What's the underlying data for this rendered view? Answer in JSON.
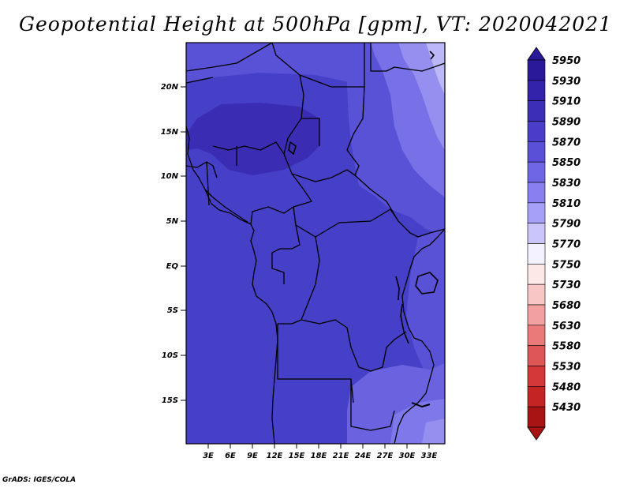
{
  "title": "Geopotential Height at 500hPa [gpm], VT: 2020042021",
  "footer": "GrADS: IGES/COLA",
  "map": {
    "lon_range": [
      0,
      35
    ],
    "lat_range": [
      -20,
      25
    ],
    "lat_ticks": [
      "20N",
      "15N",
      "10N",
      "5N",
      "EQ",
      "5S",
      "10S",
      "15S"
    ],
    "lon_ticks": [
      "3E",
      "6E",
      "9E",
      "12E",
      "15E",
      "18E",
      "21E",
      "24E",
      "27E",
      "30E",
      "33E"
    ]
  },
  "colorbar": {
    "labels": [
      "5950",
      "5930",
      "5910",
      "5890",
      "5870",
      "5850",
      "5830",
      "5810",
      "5790",
      "5770",
      "5750",
      "5730",
      "5680",
      "5630",
      "5580",
      "5530",
      "5480",
      "5430"
    ],
    "colors": [
      "#2a1a99",
      "#3322aa",
      "#3d2eb8",
      "#4a3ec8",
      "#5a50d8",
      "#6e66e4",
      "#8880f0",
      "#a6a0f8",
      "#cac6fc",
      "#f4f2ff",
      "#fde8e8",
      "#f9c6c6",
      "#f3a0a0",
      "#ea7a7a",
      "#df5656",
      "#d43838",
      "#c42424",
      "#a81414"
    ]
  },
  "field_colors": {
    "base": "#463fc8",
    "darker": "#3a2db4",
    "medium": "#5a52d6",
    "light": "#7770e6",
    "lighter": "#958ff0",
    "palest": "#bcb8f8",
    "coast": "#000000"
  }
}
